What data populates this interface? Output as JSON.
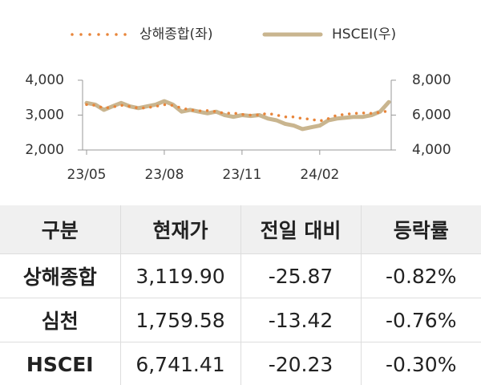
{
  "chart_data": {
    "type": "line",
    "categories": [
      "23/05",
      null,
      null,
      null,
      null,
      null,
      null,
      null,
      null,
      "23/08",
      null,
      null,
      null,
      null,
      null,
      null,
      null,
      null,
      "23/11",
      null,
      null,
      null,
      null,
      null,
      null,
      null,
      null,
      "24/02",
      null,
      null,
      null,
      null,
      null,
      null,
      null,
      null
    ],
    "series": [
      {
        "name": "상해종합(좌)",
        "color": "#e8853a",
        "axis": "y",
        "values": [
          3300,
          3280,
          3200,
          3230,
          3280,
          3250,
          3200,
          3210,
          3250,
          3300,
          3280,
          3200,
          3150,
          3120,
          3130,
          3100,
          3050,
          3060,
          3020,
          3000,
          3010,
          3050,
          3000,
          2950,
          2950,
          2900,
          2880,
          2830,
          2900,
          3000,
          3020,
          3050,
          3060,
          3050,
          3080,
          3120
        ]
      },
      {
        "name": "HSCEI(우)",
        "color": "#c9b58f",
        "axis": "y2",
        "values": [
          6700,
          6600,
          6300,
          6500,
          6700,
          6500,
          6400,
          6500,
          6600,
          6800,
          6600,
          6200,
          6300,
          6200,
          6100,
          6200,
          6000,
          5900,
          6000,
          5950,
          6000,
          5800,
          5700,
          5500,
          5400,
          5200,
          5300,
          5400,
          5700,
          5800,
          5850,
          5900,
          5900,
          6000,
          6200,
          6750
        ]
      }
    ],
    "ylim": [
      2000,
      4000
    ],
    "yticks": [
      {
        "value": 2000,
        "label": "2,000"
      },
      {
        "value": 3000,
        "label": "3,000"
      },
      {
        "value": 4000,
        "label": "4,000"
      }
    ],
    "y2lim": [
      4000,
      8000
    ],
    "y2ticks": [
      {
        "value": 4000,
        "label": "4,000"
      },
      {
        "value": 6000,
        "label": "6,000"
      },
      {
        "value": 8000,
        "label": "8,000"
      }
    ],
    "legend": "top"
  },
  "table": {
    "header": [
      "구분",
      "현재가",
      "전일 대비",
      "등락률"
    ],
    "rows": [
      [
        "상해종합",
        "3,119.90",
        "-25.87",
        "-0.82%"
      ],
      [
        "심천",
        "1,759.58",
        "-13.42",
        "-0.76%"
      ],
      [
        "HSCEI",
        "6,741.41",
        "-20.23",
        "-0.30%"
      ]
    ]
  }
}
